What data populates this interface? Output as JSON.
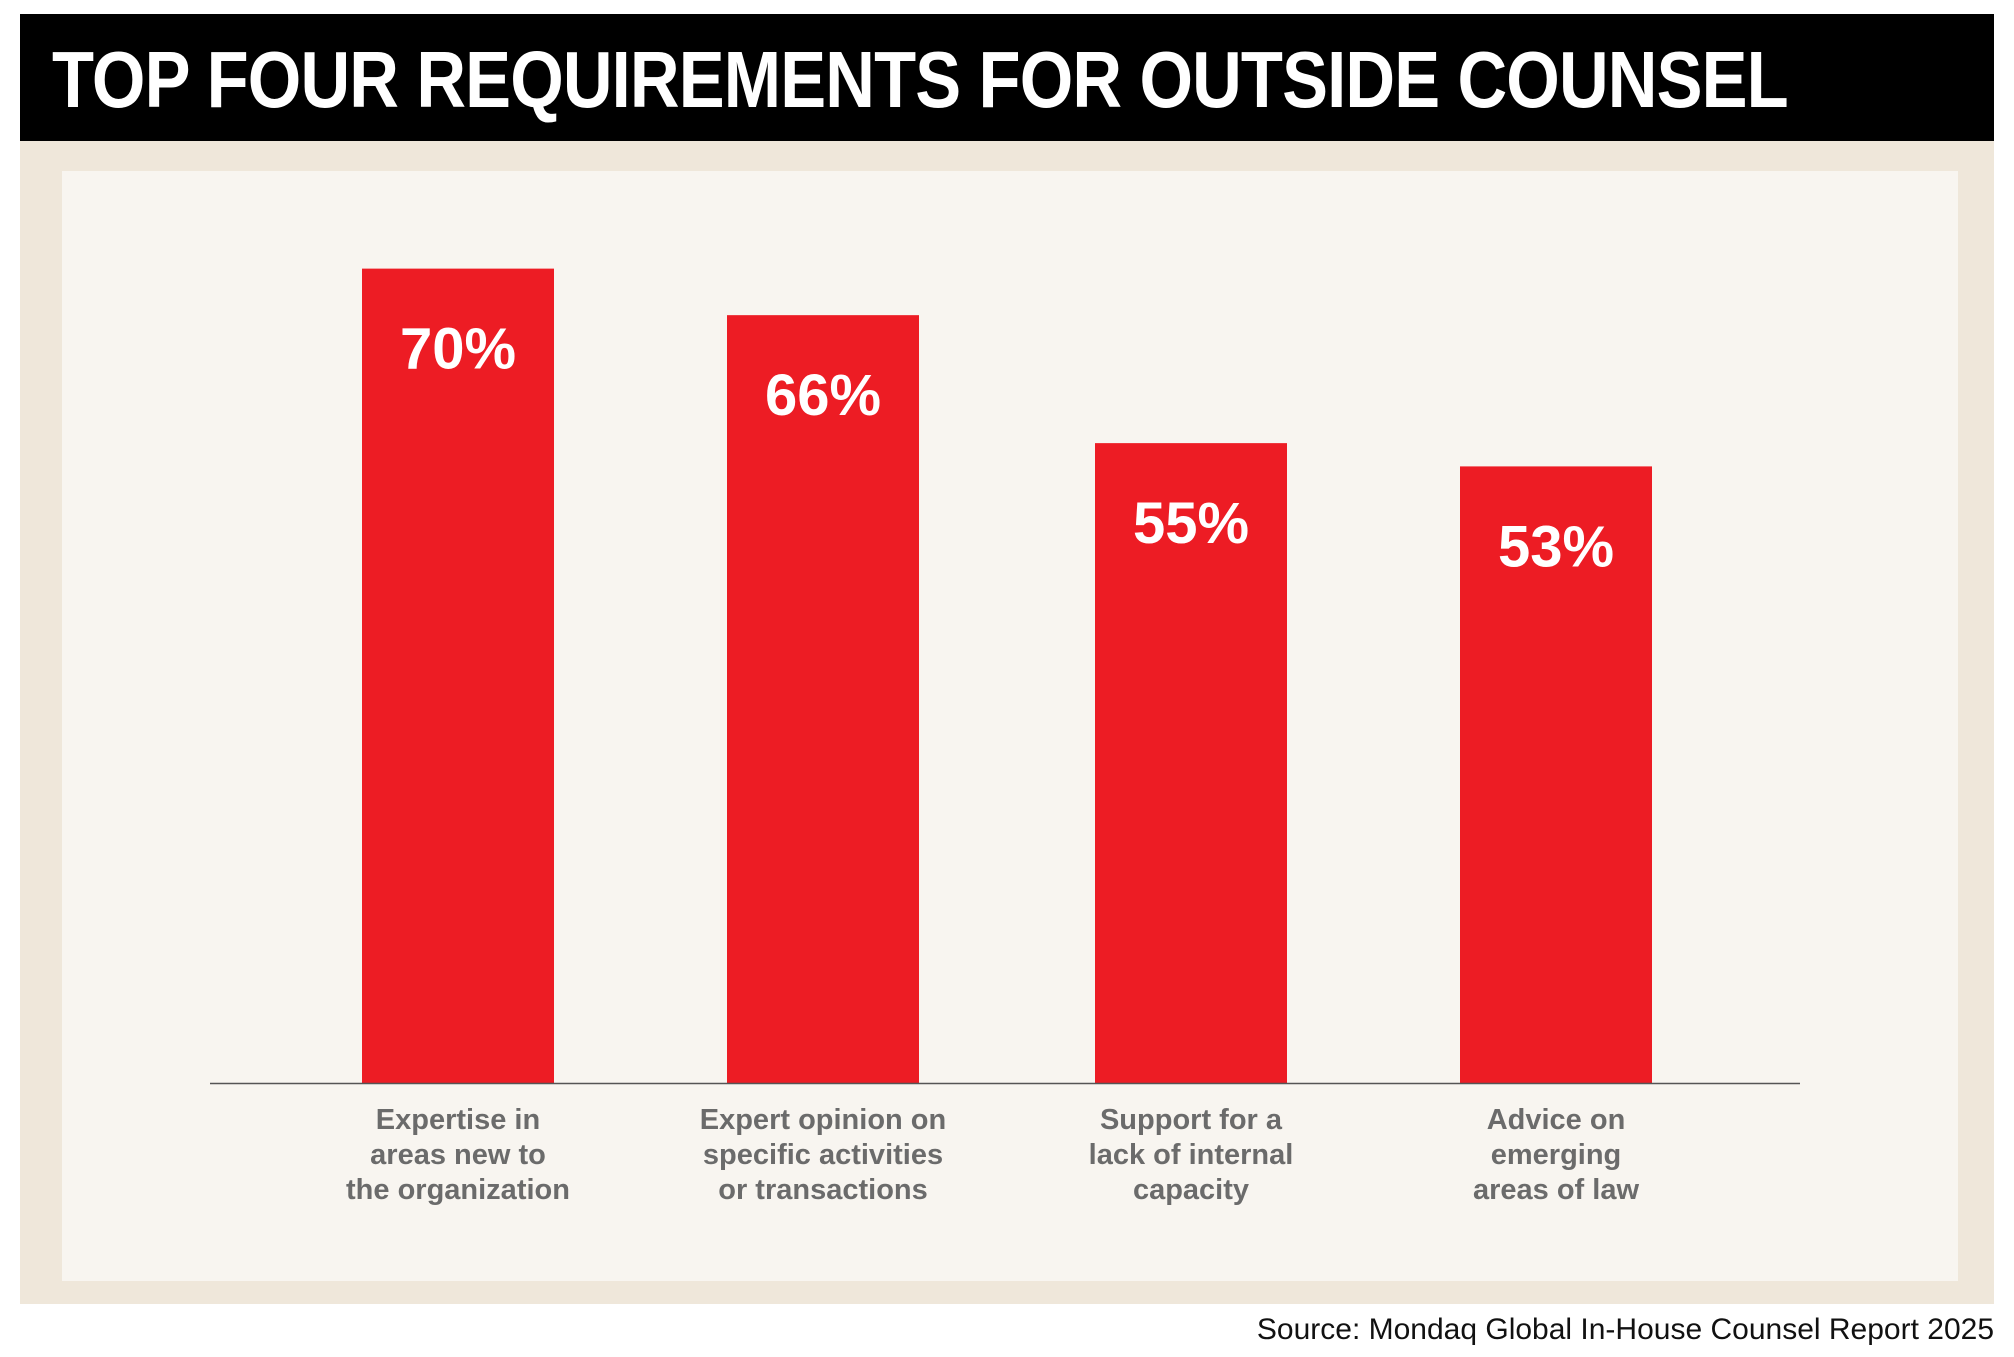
{
  "header": {
    "title": "TOP FOUR REQUIREMENTS FOR OUTSIDE COUNSEL"
  },
  "footer": {
    "source": "Source: Mondaq Global In-House Counsel Report 2025"
  },
  "colors": {
    "bar": "#ED1C24",
    "label": "#6b6b6b",
    "axis": "#555555"
  },
  "chart_data": {
    "type": "bar",
    "title": "TOP FOUR REQUIREMENTS FOR OUTSIDE COUNSEL",
    "xlabel": "",
    "ylabel": "",
    "ylim": [
      0,
      75
    ],
    "grid": false,
    "categories": [
      [
        "Expertise in",
        "areas new to",
        "the organization"
      ],
      [
        "Expert opinion on",
        "specific activities",
        "or transactions"
      ],
      [
        "Support for a",
        "lack of internal",
        "capacity"
      ],
      [
        "Advice on",
        "emerging",
        "areas of law"
      ]
    ],
    "values": [
      70,
      66,
      55,
      53
    ],
    "value_labels": [
      "70%",
      "66%",
      "55%",
      "53%"
    ]
  }
}
